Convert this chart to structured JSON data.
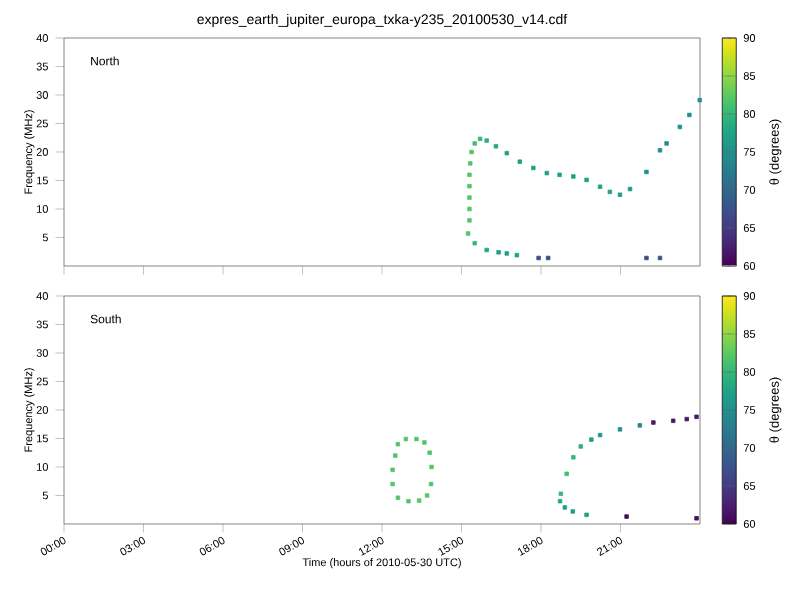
{
  "chart_data": [
    {
      "type": "scatter",
      "title": "expres_earth_jupiter_europa_txka-y235_20100530_v14.cdf",
      "ylabel": "Frequency (MHz)",
      "clabel": "θ (degrees)",
      "annotations": [
        "North"
      ],
      "marker": "square",
      "tick_labels": "y",
      "xlim": [
        0,
        24
      ],
      "xticks": [
        {
          "value": 0,
          "label": null
        },
        {
          "value": 3,
          "label": null
        },
        {
          "value": 6,
          "label": null
        },
        {
          "value": 9,
          "label": null
        },
        {
          "value": 12,
          "label": null
        },
        {
          "value": 15,
          "label": null
        },
        {
          "value": 18,
          "label": null
        },
        {
          "value": 21,
          "label": null
        }
      ],
      "ylim": [
        0,
        40
      ],
      "yticks": [
        5,
        10,
        15,
        20,
        25,
        30,
        35,
        40
      ],
      "clim": [
        60,
        90
      ],
      "cticks": [
        60,
        65,
        70,
        75,
        80,
        85,
        90
      ],
      "x": [
        15.25,
        15.3,
        15.3,
        15.3,
        15.3,
        15.3,
        15.33,
        15.38,
        15.5,
        15.7,
        15.95,
        16.3,
        16.71,
        17.2,
        17.71,
        18.22,
        18.7,
        19.22,
        19.72,
        20.23,
        20.6,
        20.98,
        21.36,
        21.98,
        22.49,
        22.74,
        23.24,
        23.6,
        23.99,
        15.5,
        15.95,
        16.4,
        16.71,
        17.09,
        17.91,
        18.27,
        21.98,
        22.49
      ],
      "values": [
        5.7,
        8,
        10,
        12,
        14,
        16,
        18,
        20,
        21.5,
        22.3,
        22,
        21,
        19.8,
        18.3,
        17.2,
        16.3,
        16,
        15.7,
        15.1,
        13.9,
        13,
        12.5,
        13.5,
        16.5,
        20.3,
        21.5,
        24.4,
        26.5,
        29.1,
        4,
        2.8,
        2.4,
        2.2,
        1.9,
        1.4,
        1.4,
        1.4,
        1.4
      ],
      "cvalues": [
        82,
        82,
        82,
        82,
        82,
        82,
        82,
        82,
        81,
        80,
        79,
        78,
        77,
        77,
        77,
        77,
        77,
        77,
        77,
        77,
        77,
        77,
        76,
        75,
        75,
        75,
        75,
        75,
        75,
        80,
        78,
        77,
        77,
        77,
        67,
        67,
        67,
        67
      ]
    },
    {
      "type": "scatter",
      "xlabel": "Time (hours of 2010-05-30 UTC)",
      "ylabel": "Frequency (MHz)",
      "clabel": "θ (degrees)",
      "annotations": [
        "South"
      ],
      "marker": "square",
      "xlim": [
        0,
        24
      ],
      "xticks": [
        {
          "value": 0,
          "label": "00:00"
        },
        {
          "value": 3,
          "label": "03:00"
        },
        {
          "value": 6,
          "label": "06:00"
        },
        {
          "value": 9,
          "label": "09:00"
        },
        {
          "value": 12,
          "label": "12:00"
        },
        {
          "value": 15,
          "label": "15:00"
        },
        {
          "value": 18,
          "label": "18:00"
        },
        {
          "value": 21,
          "label": "21:00"
        }
      ],
      "ylim": [
        0,
        40
      ],
      "yticks": [
        5,
        10,
        15,
        20,
        25,
        30,
        35,
        40
      ],
      "clim": [
        60,
        90
      ],
      "cticks": [
        60,
        65,
        70,
        75,
        80,
        85,
        90
      ],
      "x": [
        12.4,
        12.4,
        12.5,
        12.6,
        12.9,
        13.3,
        13.6,
        13.8,
        13.87,
        13.85,
        13.7,
        13.4,
        13.0,
        12.6,
        19.72,
        19.2,
        18.9,
        18.72,
        18.75,
        18.97,
        19.22,
        19.5,
        19.9,
        20.23,
        20.98,
        21.73,
        22.24,
        22.99,
        23.5,
        23.87,
        21.23,
        23.87
      ],
      "values": [
        7,
        9.5,
        12,
        14,
        14.9,
        14.9,
        14.3,
        12.5,
        10,
        7,
        5,
        4.1,
        4.0,
        4.6,
        1.6,
        2.2,
        2.9,
        4.0,
        5.3,
        8.8,
        11.7,
        13.6,
        14.8,
        15.6,
        16.6,
        17.3,
        17.8,
        18.1,
        18.4,
        18.8,
        1.3,
        1.0
      ],
      "cvalues": [
        82,
        82,
        82,
        82,
        82,
        82,
        82,
        82,
        82,
        82,
        82,
        82,
        82,
        82,
        77,
        77,
        77,
        78,
        80,
        81,
        80,
        79,
        77,
        76,
        75,
        74,
        62,
        62,
        62,
        62,
        61,
        61
      ]
    }
  ]
}
